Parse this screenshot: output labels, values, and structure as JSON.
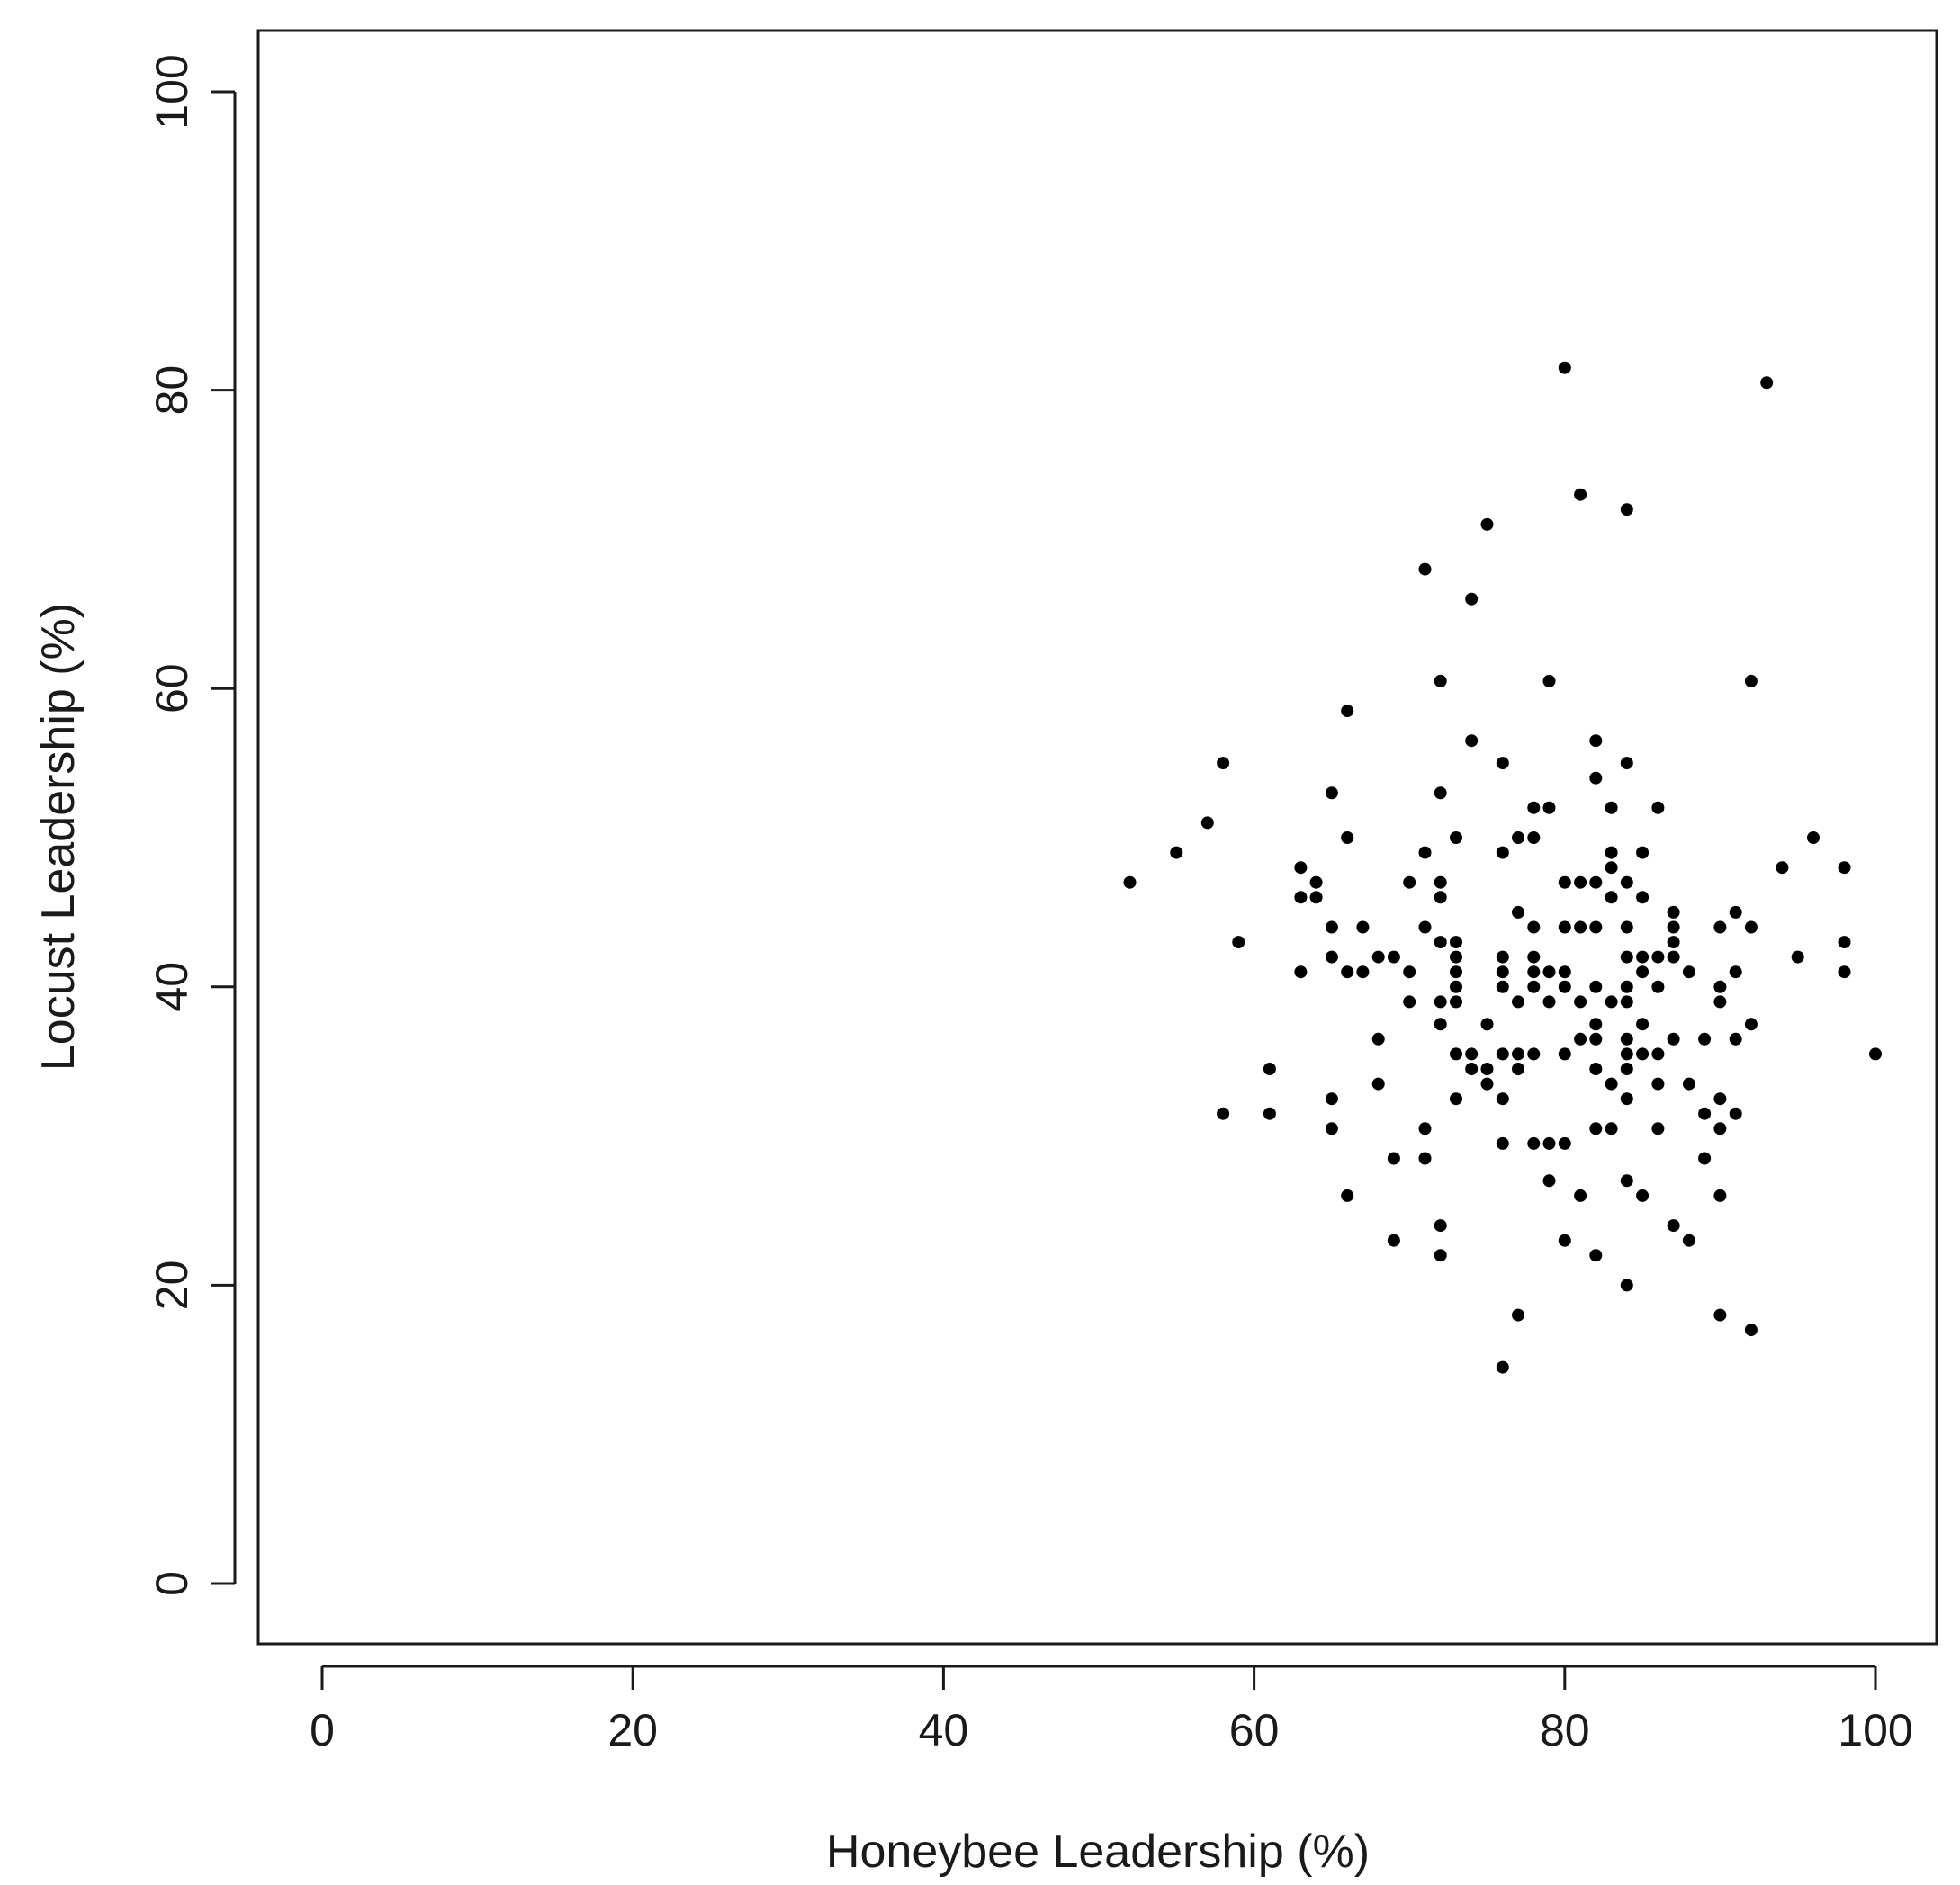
{
  "chart_data": {
    "type": "scatter",
    "xlabel": "Honeybee Leadership (%)",
    "ylabel": "Locust Leadership (%)",
    "xlim": [
      -4,
      104
    ],
    "ylim": [
      -4,
      104
    ],
    "x_ticks": [
      0,
      20,
      40,
      60,
      80,
      100
    ],
    "y_ticks": [
      0,
      20,
      40,
      60,
      80,
      100
    ],
    "x_tick_labels": [
      "0",
      "20",
      "40",
      "60",
      "80",
      "100"
    ],
    "y_tick_labels": [
      "0",
      "20",
      "40",
      "60",
      "80",
      "100"
    ],
    "grid": false,
    "legend": "none",
    "marker_color": "#000000",
    "axis_color": "#1a1a1a",
    "points": [
      [
        52,
        47
      ],
      [
        55,
        49
      ],
      [
        57,
        51
      ],
      [
        58,
        55
      ],
      [
        58,
        31.5
      ],
      [
        59,
        43
      ],
      [
        61,
        34.5
      ],
      [
        61,
        31.5
      ],
      [
        63,
        48
      ],
      [
        63,
        46
      ],
      [
        63,
        41
      ],
      [
        64,
        47
      ],
      [
        64,
        46
      ],
      [
        65,
        53
      ],
      [
        65,
        44
      ],
      [
        65,
        42
      ],
      [
        65,
        32.5
      ],
      [
        65,
        30.5
      ],
      [
        66,
        58.5
      ],
      [
        66,
        50
      ],
      [
        66,
        41
      ],
      [
        66,
        26
      ],
      [
        67,
        44
      ],
      [
        67,
        41
      ],
      [
        68,
        42
      ],
      [
        68,
        36.5
      ],
      [
        68,
        33.5
      ],
      [
        69,
        42
      ],
      [
        69,
        28.5
      ],
      [
        69,
        23
      ],
      [
        70,
        47
      ],
      [
        70,
        41
      ],
      [
        70,
        39
      ],
      [
        71,
        68
      ],
      [
        71,
        49
      ],
      [
        71,
        44
      ],
      [
        71,
        30.5
      ],
      [
        71,
        28.5
      ],
      [
        72,
        60.5
      ],
      [
        72,
        53
      ],
      [
        72,
        47
      ],
      [
        72,
        46
      ],
      [
        72,
        43
      ],
      [
        72,
        39
      ],
      [
        72,
        37.5
      ],
      [
        72,
        24
      ],
      [
        72,
        22
      ],
      [
        73,
        50
      ],
      [
        73,
        43
      ],
      [
        73,
        42
      ],
      [
        73,
        41
      ],
      [
        73,
        40
      ],
      [
        73,
        39
      ],
      [
        73,
        35.5
      ],
      [
        73,
        32.5
      ],
      [
        74,
        66
      ],
      [
        74,
        56.5
      ],
      [
        74,
        35.5
      ],
      [
        74,
        34.5
      ],
      [
        75,
        71
      ],
      [
        75,
        37.5
      ],
      [
        75,
        34.5
      ],
      [
        75,
        33.5
      ],
      [
        76,
        55
      ],
      [
        76,
        49
      ],
      [
        76,
        42
      ],
      [
        76,
        41
      ],
      [
        76,
        40
      ],
      [
        76,
        35.5
      ],
      [
        76,
        32.5
      ],
      [
        76,
        29.5
      ],
      [
        76,
        14.5
      ],
      [
        77,
        50
      ],
      [
        77,
        45
      ],
      [
        77,
        39
      ],
      [
        77,
        35.5
      ],
      [
        77,
        34.5
      ],
      [
        77,
        18
      ],
      [
        78,
        52
      ],
      [
        78,
        50
      ],
      [
        78,
        44
      ],
      [
        78,
        42
      ],
      [
        78,
        41
      ],
      [
        78,
        40
      ],
      [
        78,
        35.5
      ],
      [
        78,
        29.5
      ],
      [
        79,
        60.5
      ],
      [
        79,
        52
      ],
      [
        79,
        41
      ],
      [
        79,
        39
      ],
      [
        79,
        29.5
      ],
      [
        79,
        27
      ],
      [
        80,
        81.5
      ],
      [
        80,
        47
      ],
      [
        80,
        44
      ],
      [
        80,
        41
      ],
      [
        80,
        40
      ],
      [
        80,
        35.5
      ],
      [
        80,
        29.5
      ],
      [
        80,
        23
      ],
      [
        81,
        73
      ],
      [
        81,
        47
      ],
      [
        81,
        44
      ],
      [
        81,
        39
      ],
      [
        81,
        36.5
      ],
      [
        81,
        26
      ],
      [
        82,
        56.5
      ],
      [
        82,
        54
      ],
      [
        82,
        47
      ],
      [
        82,
        44
      ],
      [
        82,
        40
      ],
      [
        82,
        37.5
      ],
      [
        82,
        36.5
      ],
      [
        82,
        34.5
      ],
      [
        82,
        30.5
      ],
      [
        82,
        22
      ],
      [
        83,
        52
      ],
      [
        83,
        49
      ],
      [
        83,
        48
      ],
      [
        83,
        46
      ],
      [
        83,
        39
      ],
      [
        83,
        33.5
      ],
      [
        83,
        30.5
      ],
      [
        84,
        72
      ],
      [
        84,
        55
      ],
      [
        84,
        47
      ],
      [
        84,
        44
      ],
      [
        84,
        42
      ],
      [
        84,
        40
      ],
      [
        84,
        39
      ],
      [
        84,
        36.5
      ],
      [
        84,
        35.5
      ],
      [
        84,
        34.5
      ],
      [
        84,
        32.5
      ],
      [
        84,
        27
      ],
      [
        84,
        20
      ],
      [
        85,
        49
      ],
      [
        85,
        46
      ],
      [
        85,
        42
      ],
      [
        85,
        41
      ],
      [
        85,
        37.5
      ],
      [
        85,
        35.5
      ],
      [
        85,
        26
      ],
      [
        86,
        52
      ],
      [
        86,
        42
      ],
      [
        86,
        40
      ],
      [
        86,
        35.5
      ],
      [
        86,
        33.5
      ],
      [
        86,
        30.5
      ],
      [
        87,
        45
      ],
      [
        87,
        44
      ],
      [
        87,
        43
      ],
      [
        87,
        42
      ],
      [
        87,
        36.5
      ],
      [
        87,
        24
      ],
      [
        88,
        41
      ],
      [
        88,
        33.5
      ],
      [
        88,
        23
      ],
      [
        89,
        36.5
      ],
      [
        89,
        31.5
      ],
      [
        89,
        28.5
      ],
      [
        90,
        44
      ],
      [
        90,
        40
      ],
      [
        90,
        39
      ],
      [
        90,
        32.5
      ],
      [
        90,
        30.5
      ],
      [
        90,
        26
      ],
      [
        90,
        18
      ],
      [
        91,
        45
      ],
      [
        91,
        41
      ],
      [
        91,
        36.5
      ],
      [
        91,
        31.5
      ],
      [
        92,
        60.5
      ],
      [
        92,
        44
      ],
      [
        92,
        37.5
      ],
      [
        92,
        17
      ],
      [
        93,
        80.5
      ],
      [
        94,
        48
      ],
      [
        95,
        42
      ],
      [
        96,
        50
      ],
      [
        98,
        48
      ],
      [
        98,
        43
      ],
      [
        98,
        41
      ],
      [
        100,
        35.5
      ]
    ]
  }
}
